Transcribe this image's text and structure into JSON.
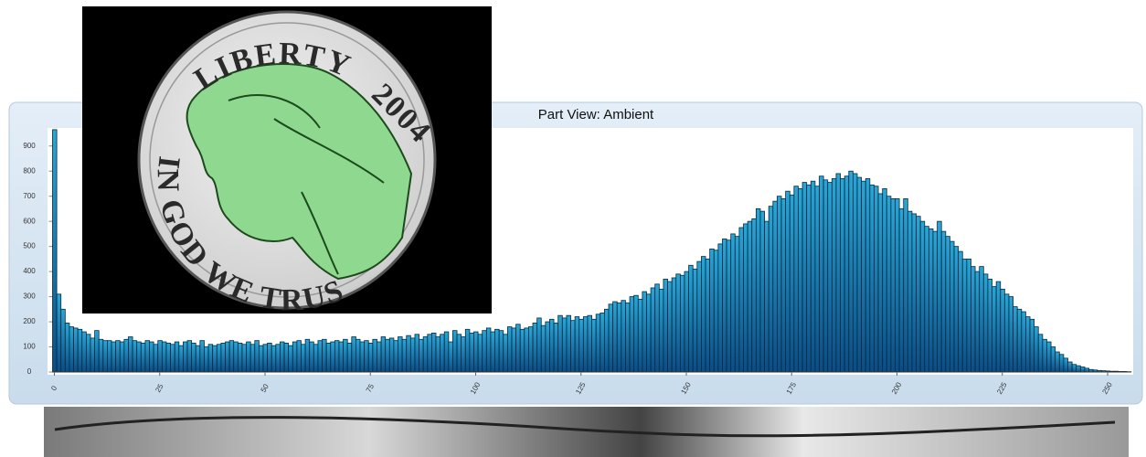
{
  "chart_data": {
    "type": "histogram",
    "title": "Part View:  Ambient",
    "bins": [
      0,
      1,
      2,
      3,
      4,
      5,
      6,
      7,
      8,
      9,
      10,
      11,
      12,
      13,
      14,
      15,
      16,
      17,
      18,
      19,
      20,
      21,
      22,
      23,
      24,
      25,
      26,
      27,
      28,
      29,
      30,
      31,
      32,
      33,
      34,
      35,
      36,
      37,
      38,
      39,
      40,
      41,
      42,
      43,
      44,
      45,
      46,
      47,
      48,
      49,
      50,
      51,
      52,
      53,
      54,
      55,
      56,
      57,
      58,
      59,
      60,
      61,
      62,
      63,
      64,
      65,
      66,
      67,
      68,
      69,
      70,
      71,
      72,
      73,
      74,
      75,
      76,
      77,
      78,
      79,
      80,
      81,
      82,
      83,
      84,
      85,
      86,
      87,
      88,
      89,
      90,
      91,
      92,
      93,
      94,
      95,
      96,
      97,
      98,
      99,
      100,
      101,
      102,
      103,
      104,
      105,
      106,
      107,
      108,
      109,
      110,
      111,
      112,
      113,
      114,
      115,
      116,
      117,
      118,
      119,
      120,
      121,
      122,
      123,
      124,
      125,
      126,
      127,
      128,
      129,
      130,
      131,
      132,
      133,
      134,
      135,
      136,
      137,
      138,
      139,
      140,
      141,
      142,
      143,
      144,
      145,
      146,
      147,
      148,
      149,
      150,
      151,
      152,
      153,
      154,
      155,
      156,
      157,
      158,
      159,
      160,
      161,
      162,
      163,
      164,
      165,
      166,
      167,
      168,
      169,
      170,
      171,
      172,
      173,
      174,
      175,
      176,
      177,
      178,
      179,
      180,
      181,
      182,
      183,
      184,
      185,
      186,
      187,
      188,
      189,
      190,
      191,
      192,
      193,
      194,
      195,
      196,
      197,
      198,
      199,
      200,
      201,
      202,
      203,
      204,
      205,
      206,
      207,
      208,
      209,
      210,
      211,
      212,
      213,
      214,
      215,
      216,
      217,
      218,
      219,
      220,
      221,
      222,
      223,
      224,
      225,
      226,
      227,
      228,
      229,
      230,
      231,
      232,
      233,
      234,
      235,
      236,
      237,
      238,
      239,
      240,
      241,
      242,
      243,
      244,
      245,
      246,
      247,
      248,
      249,
      250,
      251,
      252,
      253,
      254,
      255,
      256
    ],
    "values": [
      965,
      310,
      250,
      195,
      180,
      175,
      170,
      160,
      150,
      135,
      165,
      130,
      125,
      125,
      120,
      125,
      120,
      130,
      140,
      125,
      120,
      115,
      125,
      120,
      110,
      125,
      120,
      115,
      110,
      120,
      105,
      120,
      125,
      115,
      105,
      125,
      100,
      110,
      105,
      110,
      115,
      120,
      125,
      120,
      115,
      110,
      120,
      110,
      125,
      105,
      110,
      115,
      105,
      110,
      120,
      115,
      105,
      120,
      125,
      110,
      130,
      120,
      110,
      125,
      130,
      115,
      120,
      125,
      120,
      130,
      115,
      140,
      130,
      120,
      125,
      115,
      130,
      120,
      140,
      130,
      135,
      125,
      140,
      130,
      145,
      135,
      150,
      130,
      140,
      150,
      155,
      140,
      150,
      160,
      120,
      165,
      150,
      140,
      170,
      155,
      160,
      150,
      165,
      175,
      160,
      170,
      165,
      150,
      180,
      175,
      190,
      170,
      175,
      180,
      195,
      215,
      185,
      200,
      210,
      195,
      225,
      215,
      225,
      205,
      220,
      210,
      220,
      225,
      210,
      230,
      235,
      250,
      270,
      280,
      275,
      285,
      275,
      300,
      305,
      290,
      320,
      310,
      335,
      350,
      330,
      370,
      360,
      375,
      390,
      385,
      400,
      425,
      410,
      440,
      460,
      450,
      490,
      485,
      510,
      530,
      525,
      550,
      540,
      575,
      590,
      600,
      610,
      650,
      640,
      600,
      660,
      680,
      700,
      690,
      720,
      705,
      740,
      730,
      755,
      745,
      760,
      740,
      780,
      765,
      755,
      770,
      790,
      770,
      780,
      800,
      790,
      775,
      760,
      770,
      745,
      740,
      710,
      730,
      700,
      690,
      690,
      650,
      690,
      640,
      630,
      620,
      600,
      580,
      570,
      560,
      600,
      560,
      540,
      520,
      500,
      480,
      450,
      450,
      420,
      400,
      420,
      390,
      370,
      340,
      360,
      330,
      310,
      300,
      260,
      250,
      240,
      220,
      210,
      180,
      150,
      130,
      120,
      100,
      80,
      70,
      55,
      40,
      30,
      25,
      20,
      15,
      10,
      8,
      6,
      5,
      4,
      3,
      3,
      2,
      2,
      1
    ],
    "xlim": [
      0,
      256
    ],
    "xticks": [
      0,
      25,
      50,
      75,
      100,
      125,
      150,
      175,
      200,
      225,
      250
    ],
    "ylim": [
      0,
      950
    ],
    "yticks": [
      0,
      100,
      200,
      300,
      400,
      500,
      600,
      700,
      800,
      900
    ]
  },
  "coin_inscriptions": [
    "LIBERTY",
    "2004",
    "IN GOD WE TRUST"
  ]
}
